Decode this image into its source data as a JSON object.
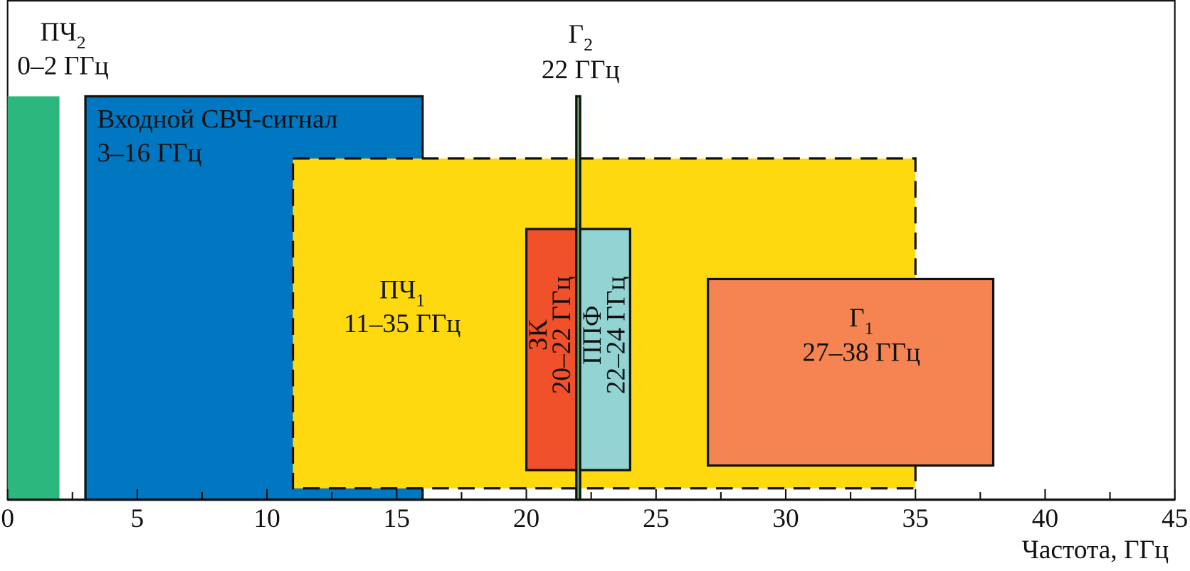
{
  "chart_data": {
    "type": "band",
    "x_label": "Частота, ГГц",
    "xlim": [
      0,
      45
    ],
    "xticks": [
      0,
      5,
      10,
      15,
      20,
      25,
      30,
      35,
      40,
      45
    ],
    "xminor_ticks": [
      2.5,
      7.5,
      12.5,
      17.5,
      22.5,
      27.5,
      32.5,
      37.5,
      42.5
    ],
    "bands": [
      {
        "name": "ПЧ",
        "sub": "2",
        "range": "0–2 ГГц",
        "start": 0,
        "end": 2,
        "color": "#2cb77f",
        "border": "none"
      },
      {
        "name": "Входной СВЧ-сигнал",
        "range": "3–16 ГГц",
        "start": 3,
        "end": 16,
        "color": "#0077c0",
        "border": "solid"
      },
      {
        "name": "ПЧ",
        "sub": "1",
        "range": "11–35 ГГц",
        "start": 11,
        "end": 35,
        "color": "#ffd90f",
        "border": "dashed"
      },
      {
        "name": "ЗК",
        "range": "20–22 ГГц",
        "start": 20,
        "end": 22,
        "color": "#f0502a",
        "border": "solid"
      },
      {
        "name": "ППФ",
        "range": "22–24 ГГц",
        "start": 22,
        "end": 24,
        "color": "#92d3d3",
        "border": "solid"
      },
      {
        "name": "Г",
        "sub": "1",
        "range": "27–38 ГГц",
        "start": 27,
        "end": 38,
        "color": "#f58452",
        "border": "solid"
      },
      {
        "name": "Г",
        "sub": "2",
        "range": "22 ГГц",
        "start": 22,
        "end": 22,
        "color": "#6db26a",
        "border": "solid"
      }
    ]
  }
}
